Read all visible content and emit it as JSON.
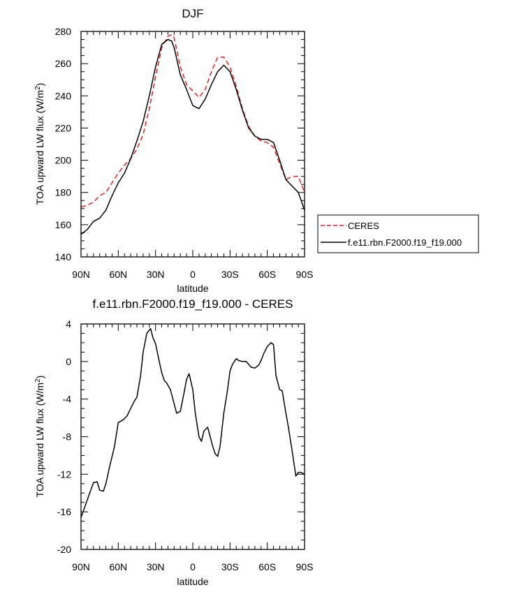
{
  "chart_data": [
    {
      "type": "line",
      "title": "DJF",
      "xlabel": "latitude",
      "ylabel": "TOA upward LW flux (W/m",
      "ylabel_sup": "2",
      "ylabel_close": ")",
      "xlim": [
        90,
        -90
      ],
      "ylim": [
        140,
        280
      ],
      "xticks": [
        90,
        60,
        30,
        0,
        -30,
        -60,
        -90
      ],
      "xtick_labels": [
        "90N",
        "60N",
        "30N",
        "0",
        "30S",
        "60S",
        "90S"
      ],
      "yticks": [
        140,
        160,
        180,
        200,
        220,
        240,
        260,
        280
      ],
      "legend_position": "right",
      "series": [
        {
          "name": "CERES",
          "color": "#e8201e",
          "dash": "dashed",
          "x": [
            90,
            85,
            80,
            75,
            70,
            65,
            60,
            55,
            50,
            45,
            40,
            35,
            30,
            25,
            20,
            17,
            15,
            10,
            5,
            0,
            -5,
            -10,
            -15,
            -20,
            -25,
            -30,
            -35,
            -40,
            -45,
            -50,
            -55,
            -60,
            -65,
            -70,
            -75,
            -80,
            -85,
            -90
          ],
          "y": [
            171,
            172,
            174,
            178,
            180,
            186,
            192,
            197,
            201,
            207,
            216,
            232,
            252,
            270,
            277,
            278,
            276,
            258,
            247,
            243,
            239,
            244,
            255,
            264,
            264,
            258,
            246,
            232,
            221,
            215,
            212,
            211,
            208,
            198,
            188,
            190,
            190,
            180
          ]
        },
        {
          "name": "f.e11.rbn.F2000.f19_f19.000",
          "color": "#000000",
          "dash": "solid",
          "x": [
            90,
            85,
            80,
            75,
            70,
            65,
            60,
            55,
            50,
            45,
            40,
            35,
            30,
            25,
            20,
            17,
            15,
            10,
            5,
            0,
            -5,
            -10,
            -15,
            -20,
            -25,
            -30,
            -35,
            -40,
            -45,
            -50,
            -55,
            -60,
            -65,
            -70,
            -75,
            -80,
            -85,
            -90
          ],
          "y": [
            154,
            157,
            162,
            164,
            169,
            178,
            186,
            192,
            201,
            212,
            224,
            240,
            258,
            272,
            275,
            274,
            270,
            253,
            244,
            234,
            232,
            238,
            247,
            255,
            259,
            255,
            244,
            231,
            220,
            215,
            213,
            213,
            211,
            200,
            188,
            184,
            180,
            169
          ]
        }
      ]
    },
    {
      "type": "line",
      "title": "f.e11.rbn.F2000.f19_f19.000 - CERES",
      "xlabel": "latitude",
      "ylabel": "TOA upward LW flux (W/m",
      "ylabel_sup": "2",
      "ylabel_close": ")",
      "xlim": [
        90,
        -90
      ],
      "ylim": [
        -20,
        4
      ],
      "xticks": [
        90,
        60,
        30,
        0,
        -30,
        -60,
        -90
      ],
      "xtick_labels": [
        "90N",
        "60N",
        "30N",
        "0",
        "30S",
        "60S",
        "90S"
      ],
      "yticks": [
        -20,
        -16,
        -12,
        -8,
        -4,
        0,
        4
      ],
      "series": [
        {
          "color": "#000000",
          "dash": "solid",
          "x": [
            90,
            87,
            83,
            80,
            77,
            75,
            72,
            70,
            67,
            63,
            60,
            56,
            53,
            50,
            47,
            45,
            42,
            40,
            37,
            34,
            32,
            30,
            27,
            25,
            23,
            21,
            18,
            15,
            13,
            10,
            7,
            5,
            3,
            0,
            -2,
            -5,
            -7,
            -9,
            -12,
            -14,
            -16,
            -18,
            -20,
            -22,
            -25,
            -28,
            -30,
            -32,
            -35,
            -37,
            -40,
            -43,
            -45,
            -47,
            -50,
            -53,
            -55,
            -57,
            -60,
            -63,
            -65,
            -67,
            -70,
            -72,
            -75,
            -77,
            -80,
            -83,
            -85,
            -87,
            -90
          ],
          "y": [
            -16.6,
            -15.5,
            -14.0,
            -12.9,
            -12.8,
            -13.7,
            -13.8,
            -13.0,
            -11.2,
            -9.0,
            -6.5,
            -6.2,
            -5.8,
            -5.0,
            -4.2,
            -3.8,
            -1.5,
            1.0,
            3.0,
            3.5,
            2.5,
            1.9,
            0.0,
            -1.2,
            -2.0,
            -2.3,
            -3.0,
            -4.5,
            -5.5,
            -5.3,
            -3.3,
            -1.9,
            -1.3,
            -3.0,
            -5.5,
            -8.0,
            -8.5,
            -7.4,
            -7.0,
            -8.0,
            -9.0,
            -9.8,
            -10.1,
            -9.0,
            -5.5,
            -3.0,
            -1.0,
            -0.3,
            0.3,
            0.1,
            0.0,
            0.0,
            -0.3,
            -0.6,
            -0.7,
            -0.4,
            0.1,
            0.8,
            1.6,
            2.0,
            1.8,
            -1.5,
            -3.0,
            -3.1,
            -5.5,
            -7.0,
            -9.5,
            -12.2,
            -11.8,
            -11.8,
            -12.0
          ]
        }
      ]
    }
  ]
}
